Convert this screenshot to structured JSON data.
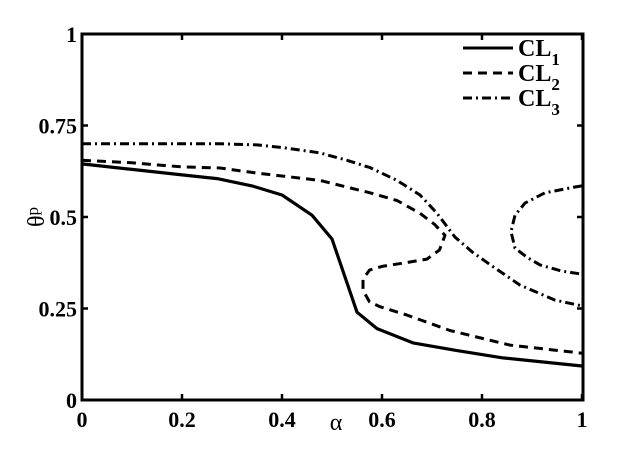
{
  "chart_data": {
    "type": "line",
    "title": "",
    "xlabel": "α",
    "ylabel": "θp",
    "ylabel_main": "θ",
    "ylabel_sub": "p",
    "xlim": [
      0,
      1
    ],
    "ylim": [
      0,
      1
    ],
    "grid": false,
    "legend_position": "upper right",
    "x_ticks": [
      {
        "value": 0,
        "label": "0"
      },
      {
        "value": 0.2,
        "label": "0.2"
      },
      {
        "value": 0.4,
        "label": "0.4"
      },
      {
        "value": 0.6,
        "label": "0.6"
      },
      {
        "value": 0.8,
        "label": "0.8"
      },
      {
        "value": 1,
        "label": "1"
      }
    ],
    "y_ticks": [
      {
        "value": 0,
        "label": "0"
      },
      {
        "value": 0.25,
        "label": "0.25"
      },
      {
        "value": 0.5,
        "label": "0.5"
      },
      {
        "value": 0.75,
        "label": "0.75"
      },
      {
        "value": 1,
        "label": "1"
      }
    ],
    "series": [
      {
        "name": "CL1",
        "label_main": "CL",
        "label_sub": "1",
        "style": "solid",
        "color": "#000000",
        "branches": [
          [
            [
              0.0,
              0.645
            ],
            [
              0.1,
              0.63
            ],
            [
              0.2,
              0.615
            ],
            [
              0.27,
              0.605
            ],
            [
              0.34,
              0.585
            ],
            [
              0.4,
              0.56
            ],
            [
              0.46,
              0.505
            ],
            [
              0.5,
              0.44
            ],
            [
              0.53,
              0.32
            ],
            [
              0.55,
              0.24
            ],
            [
              0.59,
              0.195
            ],
            [
              0.662,
              0.156
            ],
            [
              0.75,
              0.135
            ],
            [
              0.842,
              0.115
            ],
            [
              1.0,
              0.093
            ]
          ]
        ]
      },
      {
        "name": "CL2",
        "label_main": "CL",
        "label_sub": "2",
        "style": "dashed",
        "color": "#000000",
        "branches": [
          [
            [
              0.0,
              0.655
            ],
            [
              0.1,
              0.648
            ],
            [
              0.2,
              0.637
            ],
            [
              0.276,
              0.634
            ],
            [
              0.35,
              0.62
            ],
            [
              0.476,
              0.6
            ],
            [
              0.576,
              0.566
            ],
            [
              0.63,
              0.545
            ],
            [
              0.676,
              0.51
            ],
            [
              0.705,
              0.48
            ],
            [
              0.726,
              0.45
            ],
            [
              0.715,
              0.41
            ],
            [
              0.69,
              0.385
            ],
            [
              0.646,
              0.375
            ],
            [
              0.6,
              0.365
            ],
            [
              0.575,
              0.355
            ],
            [
              0.562,
              0.33
            ],
            [
              0.562,
              0.3
            ],
            [
              0.575,
              0.268
            ],
            [
              0.596,
              0.255
            ],
            [
              0.65,
              0.232
            ],
            [
              0.736,
              0.19
            ],
            [
              0.856,
              0.15
            ],
            [
              1.0,
              0.128
            ]
          ]
        ]
      },
      {
        "name": "CL3",
        "label_main": "CL",
        "label_sub": "3",
        "style": "dashdot",
        "color": "#000000",
        "branches": [
          [
            [
              0.0,
              0.7
            ],
            [
              0.1,
              0.7
            ],
            [
              0.2,
              0.7
            ],
            [
              0.276,
              0.7
            ],
            [
              0.35,
              0.697
            ],
            [
              0.4,
              0.69
            ],
            [
              0.476,
              0.675
            ],
            [
              0.53,
              0.655
            ],
            [
              0.576,
              0.635
            ],
            [
              0.63,
              0.6
            ],
            [
              0.676,
              0.56
            ],
            [
              0.71,
              0.51
            ],
            [
              0.746,
              0.445
            ],
            [
              0.78,
              0.405
            ],
            [
              0.816,
              0.37
            ],
            [
              0.876,
              0.314
            ],
            [
              0.946,
              0.273
            ],
            [
              1.0,
              0.257
            ]
          ],
          [
            [
              1.0,
              0.585
            ],
            [
              0.986,
              0.582
            ],
            [
              0.926,
              0.566
            ],
            [
              0.886,
              0.538
            ],
            [
              0.866,
              0.505
            ],
            [
              0.858,
              0.46
            ],
            [
              0.866,
              0.415
            ],
            [
              0.89,
              0.39
            ],
            [
              0.916,
              0.369
            ],
            [
              0.96,
              0.352
            ],
            [
              1.0,
              0.344
            ]
          ]
        ]
      }
    ]
  }
}
